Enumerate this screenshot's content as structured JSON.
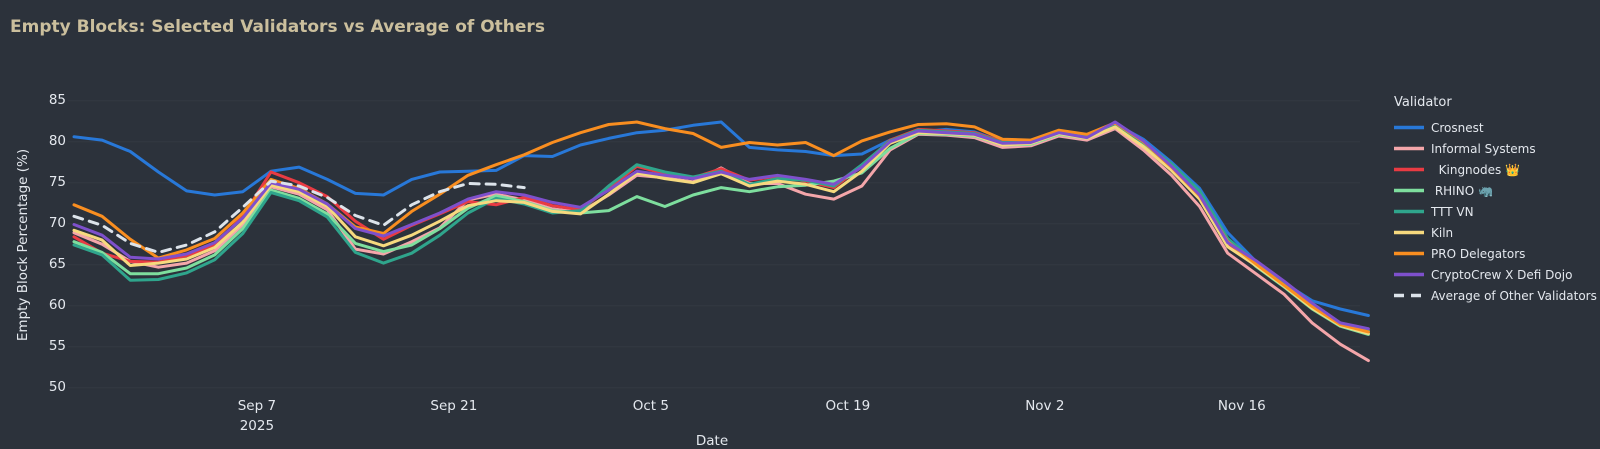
{
  "chart_data": {
    "type": "line",
    "title": "Empty Blocks: Selected Validators vs Average of Others",
    "xlabel": "Date",
    "ylabel": "Empty Block Percentage (%)",
    "legend_title": "Validator",
    "ylim": [
      49,
      86
    ],
    "grid": true,
    "legend_position": "right",
    "yticks": [
      50,
      55,
      60,
      65,
      70,
      75,
      80,
      85
    ],
    "xticks": [
      {
        "date": "2025-09-07",
        "label": "Sep 7",
        "sublabel": "2025"
      },
      {
        "date": "2025-09-21",
        "label": "Sep 21"
      },
      {
        "date": "2025-10-05",
        "label": "Oct 5"
      },
      {
        "date": "2025-10-19",
        "label": "Oct 19"
      },
      {
        "date": "2025-11-02",
        "label": "Nov 2"
      },
      {
        "date": "2025-11-16",
        "label": "Nov 16"
      }
    ],
    "dates": [
      "2025-08-25",
      "2025-08-27",
      "2025-08-29",
      "2025-08-31",
      "2025-09-02",
      "2025-09-04",
      "2025-09-06",
      "2025-09-08",
      "2025-09-10",
      "2025-09-12",
      "2025-09-14",
      "2025-09-16",
      "2025-09-18",
      "2025-09-20",
      "2025-09-22",
      "2025-09-24",
      "2025-09-26",
      "2025-09-28",
      "2025-09-30",
      "2025-10-02",
      "2025-10-04",
      "2025-10-06",
      "2025-10-08",
      "2025-10-10",
      "2025-10-12",
      "2025-10-14",
      "2025-10-16",
      "2025-10-18",
      "2025-10-20",
      "2025-10-22",
      "2025-10-24",
      "2025-10-26",
      "2025-10-28",
      "2025-10-30",
      "2025-11-01",
      "2025-11-03",
      "2025-11-05",
      "2025-11-07",
      "2025-11-09",
      "2025-11-11",
      "2025-11-13",
      "2025-11-15",
      "2025-11-17",
      "2025-11-19",
      "2025-11-21",
      "2025-11-23",
      "2025-11-25"
    ],
    "series": [
      {
        "name": "Crosnest",
        "color": "#2878d8",
        "dash": "solid",
        "values": [
          80.6,
          80.2,
          78.8,
          76.3,
          74,
          73.5,
          73.9,
          76.4,
          76.9,
          75.4,
          73.7,
          73.5,
          75.4,
          76.3,
          76.4,
          76.5,
          78.3,
          78.2,
          79.6,
          80.4,
          81.1,
          81.4,
          82,
          82.4,
          79.3,
          79,
          78.8,
          78.3,
          78.5,
          80.2,
          81.2,
          81.5,
          81.2,
          80,
          79.9,
          81.2,
          80.8,
          82.2,
          80.3,
          77.5,
          74.3,
          68.9,
          65.4,
          62.8,
          60.6,
          59.6,
          58.8
        ]
      },
      {
        "name": "Informal Systems",
        "color": "#f4a6aa",
        "dash": "solid",
        "values": [
          68.9,
          67.5,
          65.4,
          64.7,
          65.2,
          66.7,
          69.9,
          74.5,
          73.6,
          71.7,
          66.9,
          66.3,
          67.8,
          69.5,
          72.9,
          73.6,
          72.9,
          71.8,
          71.4,
          73.5,
          75.9,
          75.6,
          75.1,
          76.8,
          74.9,
          74.9,
          73.6,
          73,
          74.6,
          79,
          80.9,
          80.8,
          80.5,
          79.3,
          79.5,
          80.7,
          80.2,
          81.6,
          79,
          75.9,
          72.1,
          66.4,
          63.9,
          61.4,
          57.9,
          55.3,
          53.3
        ]
      },
      {
        "name": "  Kingnodes 👑",
        "color": "#e93b43",
        "dash": "solid",
        "values": [
          68.4,
          66.4,
          65.4,
          65.3,
          66.1,
          67.4,
          70.9,
          76.3,
          75,
          73.3,
          70.3,
          68.1,
          69.8,
          71.2,
          72.7,
          72.3,
          73.2,
          72.2,
          71.7,
          74.3,
          77,
          76.1,
          75.6,
          76.7,
          75.3,
          75.8,
          75.2,
          74.4,
          77,
          80.2,
          81.5,
          81.3,
          81.1,
          80,
          80.1,
          81.3,
          80.7,
          82.1,
          79.7,
          76.7,
          73.2,
          67.5,
          65.2,
          62.7,
          60,
          57.8,
          57
        ]
      },
      {
        "name": " RHINO 🦏",
        "color": "#7ede9e",
        "dash": "solid",
        "values": [
          67.8,
          66.5,
          63.9,
          63.9,
          64.6,
          66.2,
          69.4,
          74.1,
          73.1,
          71.2,
          67.6,
          66.6,
          67.4,
          69.4,
          71.9,
          73.4,
          72.7,
          71.6,
          71.3,
          71.6,
          73.3,
          72.1,
          73.5,
          74.4,
          73.9,
          74.5,
          74.7,
          75.2,
          76.2,
          79.2,
          81,
          80.9,
          80.7,
          79.6,
          79.7,
          80.9,
          80.4,
          81.8,
          79.5,
          77.1,
          73.8,
          68,
          64.8,
          62.3,
          59.6,
          57.5,
          56.5
        ]
      },
      {
        "name": "TTT VN",
        "color": "#2fa58c",
        "dash": "solid",
        "values": [
          67.4,
          66.2,
          63.1,
          63.2,
          64,
          65.6,
          68.8,
          73.8,
          72.8,
          70.8,
          66.5,
          65.2,
          66.4,
          68.6,
          71.3,
          73.1,
          72.4,
          71.3,
          71.6,
          74.6,
          77.2,
          76.3,
          75.7,
          76.4,
          74.8,
          75.5,
          75.3,
          74.6,
          77.2,
          80.1,
          81.4,
          81.2,
          81,
          79.9,
          80,
          81.2,
          80.6,
          82,
          79.9,
          77.3,
          74,
          68.2,
          65.3,
          62.8,
          60.1,
          57.7,
          56.9
        ]
      },
      {
        "name": "Kiln",
        "color": "#f6d97e",
        "dash": "solid",
        "values": [
          69.2,
          68,
          64.9,
          65.2,
          65.7,
          67.1,
          70.2,
          74.7,
          73.9,
          72.1,
          68.4,
          67.3,
          68.6,
          70.3,
          72.2,
          72.8,
          72.6,
          71.5,
          71.2,
          73.6,
          76.2,
          75.5,
          75,
          76.1,
          74.6,
          75.2,
          74.8,
          73.9,
          76.4,
          79.8,
          81.1,
          81,
          80.8,
          79.6,
          79.8,
          81,
          80.4,
          81.8,
          79.4,
          76.5,
          73,
          67.2,
          64.9,
          62.4,
          59.7,
          57.6,
          56.6
        ]
      },
      {
        "name": "PRO Delegators",
        "color": "#f98e20",
        "dash": "solid",
        "values": [
          72.3,
          70.9,
          68.1,
          65.8,
          66.8,
          68.2,
          71.3,
          75.4,
          74.3,
          72.4,
          69.6,
          68.8,
          71.5,
          73.6,
          75.9,
          77.2,
          78.4,
          79.9,
          81.1,
          82.1,
          82.4,
          81.6,
          81,
          79.3,
          79.9,
          79.6,
          79.9,
          78.3,
          80.1,
          81.2,
          82.1,
          82.2,
          81.8,
          80.3,
          80.2,
          81.4,
          80.9,
          82.3,
          80,
          76.9,
          73.4,
          67.8,
          65.1,
          62.5,
          59.9,
          57.7,
          56.8
        ]
      },
      {
        "name": "CryptoCrew X Defi Dojo",
        "color": "#7e50cc",
        "dash": "solid",
        "values": [
          69.9,
          68.6,
          65.9,
          65.7,
          66.3,
          67.7,
          70.7,
          75,
          74.2,
          72.4,
          69.4,
          68.5,
          69.9,
          71.3,
          73,
          73.9,
          73.5,
          72.6,
          72,
          74.1,
          76.4,
          75.9,
          75.5,
          76.3,
          75.4,
          75.9,
          75.4,
          74.8,
          76.9,
          80,
          81.3,
          81.1,
          80.9,
          79.8,
          79.9,
          81.1,
          80.5,
          82.4,
          80.1,
          77,
          73.5,
          67.7,
          65.5,
          63,
          60.3,
          57.9,
          57.2
        ]
      },
      {
        "name": "Average of Other Validators",
        "color": "#dce3ea",
        "dash": "dash",
        "values": [
          70.9,
          69.8,
          67.6,
          66.5,
          67.4,
          69,
          72,
          75.2,
          74.6,
          73.2,
          71,
          69.8,
          72.3,
          73.9,
          74.9,
          74.8,
          74.4,
          null,
          null,
          null,
          null,
          null,
          null,
          null,
          null,
          null,
          null,
          null,
          null,
          null,
          null,
          null,
          null,
          null,
          null,
          null,
          null,
          null,
          null,
          null,
          null,
          null,
          null,
          null,
          null,
          null,
          null
        ]
      }
    ]
  }
}
